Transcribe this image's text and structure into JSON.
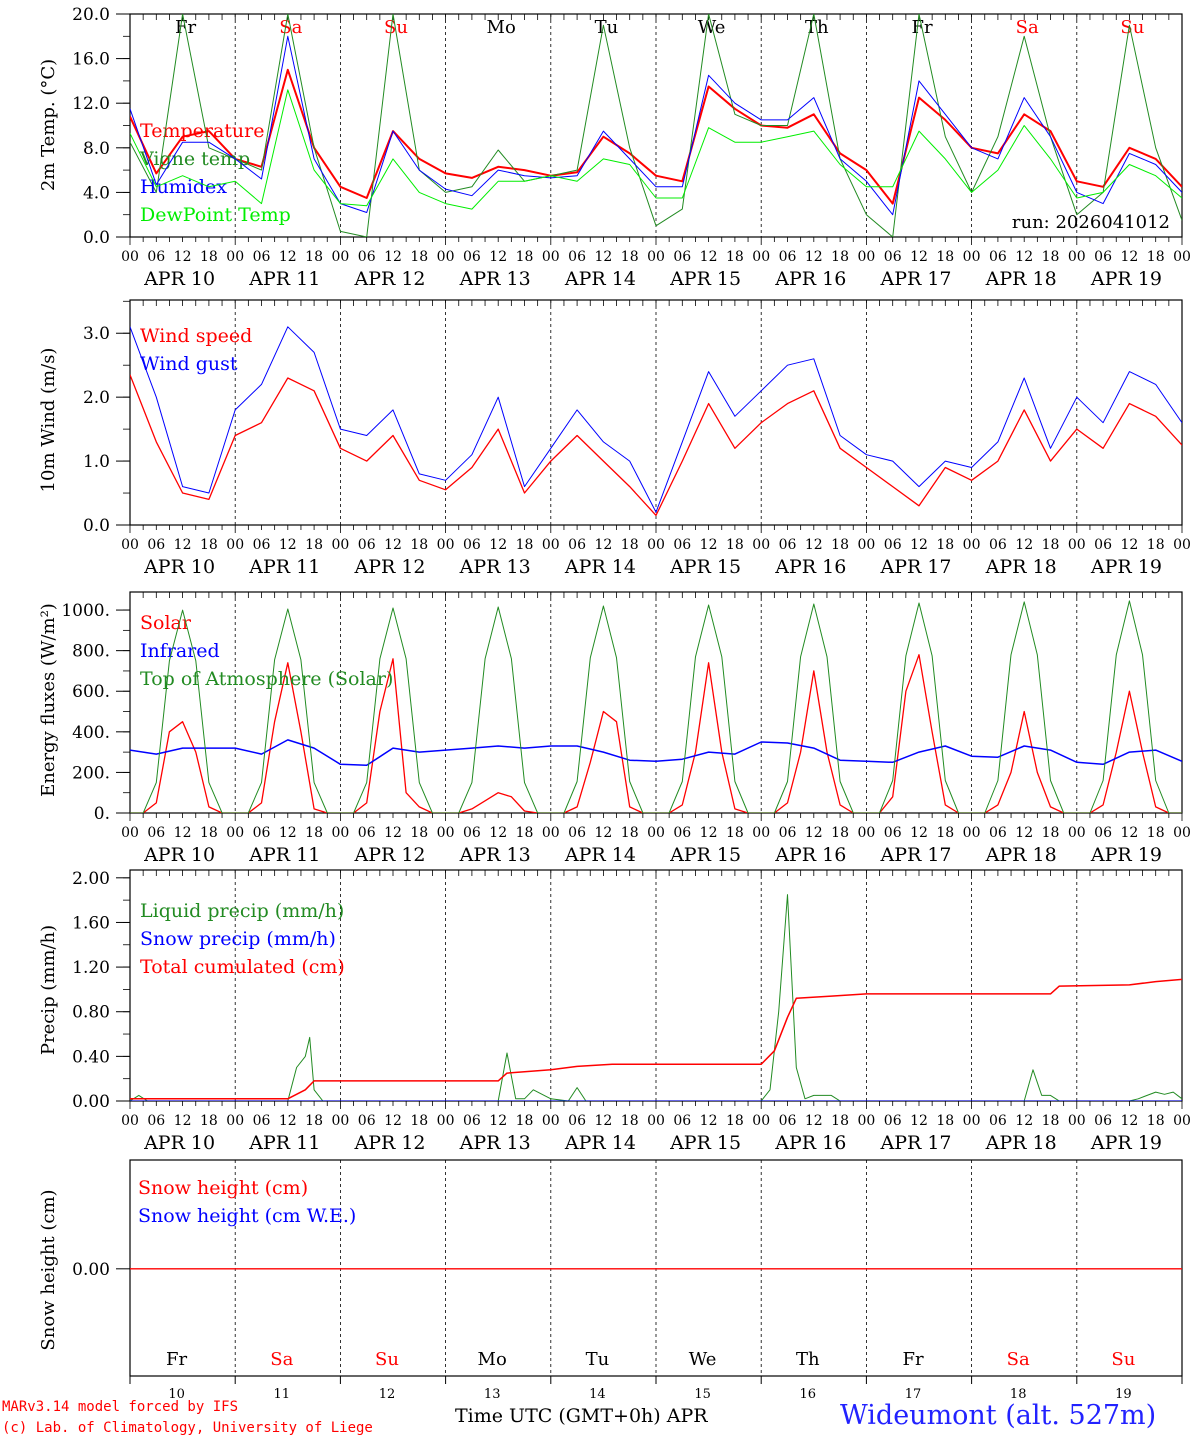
{
  "run_label": "run: 2026041012",
  "hour_labels": [
    "00",
    "06",
    "12",
    "18"
  ],
  "date_labels": [
    "APR 10",
    "APR 11",
    "APR 12",
    "APR 13",
    "APR 14",
    "APR 15",
    "APR 16",
    "APR 17",
    "APR 18",
    "APR 19"
  ],
  "day_names": [
    {
      "label": "Fr",
      "color": "#000000"
    },
    {
      "label": "Sa",
      "color": "#ff0000"
    },
    {
      "label": "Su",
      "color": "#ff0000"
    },
    {
      "label": "Mo",
      "color": "#000000"
    },
    {
      "label": "Tu",
      "color": "#000000"
    },
    {
      "label": "We",
      "color": "#000000"
    },
    {
      "label": "Th",
      "color": "#000000"
    },
    {
      "label": "Fr",
      "color": "#000000"
    },
    {
      "label": "Sa",
      "color": "#ff0000"
    },
    {
      "label": "Su",
      "color": "#ff0000"
    }
  ],
  "day_numbers": [
    "10",
    "11",
    "12",
    "13",
    "14",
    "15",
    "16",
    "17",
    "18",
    "19"
  ],
  "footer": {
    "model": "MARv3.14 model forced by IFS",
    "copyright": "(c) Lab. of Climatology, University of Liege",
    "xlabel": "Time UTC (GMT+0h) APR",
    "station": "Wideumont (alt. 527m)"
  },
  "chart_data": [
    {
      "type": "line",
      "ylabel": "2m Temp. (°C)",
      "ylim": [
        0,
        20
      ],
      "yticks": [
        "0.0",
        "4.0",
        "8.0",
        "12.0",
        "16.0",
        "20.0"
      ],
      "x_unit": "hours since APR 10 00 UTC",
      "series": [
        {
          "name": "Temperature",
          "color": "#ff0000",
          "width": 2,
          "step": 6,
          "values": [
            10.8,
            5.7,
            9.0,
            9.5,
            7.0,
            6.3,
            15.0,
            8.0,
            4.5,
            3.5,
            9.5,
            7.0,
            5.7,
            5.3,
            6.3,
            6.0,
            5.5,
            5.8,
            9.0,
            7.5,
            5.5,
            5.0,
            13.5,
            11.5,
            10.0,
            9.8,
            11.0,
            7.5,
            6.0,
            3.0,
            12.5,
            10.5,
            8.0,
            7.5,
            11.0,
            9.5,
            5.0,
            4.5,
            8.0,
            7.0,
            4.5
          ]
        },
        {
          "name": "Vigne temp",
          "color": "#228b22",
          "width": 1,
          "step": 6,
          "values": [
            8.5,
            4.0,
            20.0,
            8.0,
            7.0,
            6.0,
            20.0,
            8.0,
            0.5,
            0.0,
            20.0,
            6.0,
            4.0,
            4.5,
            7.8,
            5.0,
            5.5,
            6.0,
            19.0,
            8.0,
            1.0,
            2.5,
            20.0,
            11.0,
            10.0,
            10.0,
            20.0,
            7.0,
            2.0,
            0.0,
            20.0,
            9.0,
            4.0,
            9.0,
            18.0,
            9.0,
            2.0,
            4.0,
            19.0,
            8.0,
            1.5
          ]
        },
        {
          "name": "Humidex",
          "color": "#0000ff",
          "width": 1,
          "step": 6,
          "values": [
            11.5,
            4.7,
            8.5,
            8.5,
            7.0,
            5.2,
            18.0,
            7.0,
            3.0,
            2.2,
            9.5,
            6.0,
            4.3,
            3.7,
            6.0,
            5.5,
            5.3,
            5.5,
            9.5,
            7.0,
            4.5,
            4.5,
            14.5,
            12.0,
            10.5,
            10.5,
            12.5,
            7.0,
            5.0,
            2.0,
            14.0,
            11.0,
            8.0,
            7.0,
            12.5,
            9.0,
            4.0,
            3.0,
            7.5,
            6.5,
            4.0
          ]
        },
        {
          "name": "DewPoint Temp",
          "color": "#00ee00",
          "width": 1,
          "step": 6,
          "values": [
            9.3,
            4.5,
            5.5,
            4.5,
            5.0,
            3.0,
            13.2,
            6.0,
            3.0,
            2.8,
            7.0,
            4.0,
            3.0,
            2.5,
            5.0,
            5.0,
            5.5,
            5.0,
            7.0,
            6.5,
            3.5,
            3.5,
            9.8,
            8.5,
            8.5,
            9.0,
            9.5,
            6.5,
            4.5,
            4.5,
            9.5,
            7.0,
            4.0,
            6.0,
            10.0,
            7.0,
            3.5,
            4.0,
            6.5,
            5.5,
            3.5
          ]
        }
      ]
    },
    {
      "type": "line",
      "ylabel": "10m Wind (m/s)",
      "ylim": [
        0,
        3.52
      ],
      "yticks": [
        "0.0",
        "1.0",
        "2.0",
        "3.0"
      ],
      "series": [
        {
          "name": "Wind speed",
          "color": "#ff0000",
          "width": 1.3,
          "step": 6,
          "values": [
            2.35,
            1.3,
            0.5,
            0.4,
            1.4,
            1.6,
            2.3,
            2.1,
            1.2,
            1.0,
            1.4,
            0.7,
            0.55,
            0.9,
            1.5,
            0.5,
            1.0,
            1.4,
            1.0,
            0.6,
            0.15,
            1.0,
            1.9,
            1.2,
            1.6,
            1.9,
            2.1,
            1.2,
            0.9,
            0.6,
            0.3,
            0.9,
            0.7,
            1.0,
            1.8,
            1.0,
            1.5,
            1.2,
            1.9,
            1.7,
            1.25
          ]
        },
        {
          "name": "Wind gust",
          "color": "#0000ff",
          "width": 1,
          "step": 6,
          "values": [
            3.1,
            2.0,
            0.6,
            0.5,
            1.8,
            2.2,
            3.1,
            2.7,
            1.5,
            1.4,
            1.8,
            0.8,
            0.7,
            1.1,
            2.0,
            0.6,
            1.2,
            1.8,
            1.3,
            1.0,
            0.2,
            1.3,
            2.4,
            1.7,
            2.1,
            2.5,
            2.6,
            1.4,
            1.1,
            1.0,
            0.6,
            1.0,
            0.9,
            1.3,
            2.3,
            1.2,
            2.0,
            1.6,
            2.4,
            2.2,
            1.6
          ]
        }
      ]
    },
    {
      "type": "line",
      "ylabel": "Energy fluxes (W/m²)",
      "ylim": [
        0,
        1089
      ],
      "yticks": [
        "0.",
        "200.",
        "400.",
        "600.",
        "800.",
        "1000."
      ],
      "series": [
        {
          "name": "Solar",
          "color": "#ff0000",
          "width": 1.3,
          "step": 3,
          "values": [
            0,
            0,
            50,
            400,
            450,
            300,
            30,
            0,
            0,
            0,
            50,
            450,
            740,
            400,
            20,
            0,
            0,
            0,
            50,
            500,
            760,
            100,
            30,
            0,
            0,
            0,
            20,
            60,
            100,
            80,
            10,
            0,
            0,
            0,
            30,
            250,
            500,
            450,
            30,
            0,
            0,
            0,
            40,
            300,
            740,
            300,
            20,
            0,
            0,
            0,
            50,
            300,
            700,
            300,
            40,
            0,
            0,
            0,
            80,
            600,
            780,
            400,
            40,
            0,
            0,
            0,
            40,
            200,
            500,
            200,
            30,
            0,
            0,
            0,
            40,
            300,
            600,
            300,
            30,
            0,
            0
          ]
        },
        {
          "name": "Infrared",
          "color": "#0000ff",
          "width": 1.5,
          "step": 6,
          "values": [
            310,
            290,
            320,
            320,
            320,
            290,
            360,
            320,
            240,
            235,
            320,
            300,
            310,
            320,
            330,
            320,
            330,
            330,
            300,
            260,
            255,
            265,
            300,
            290,
            350,
            345,
            320,
            260,
            255,
            250,
            300,
            330,
            280,
            275,
            330,
            310,
            250,
            240,
            300,
            310,
            255
          ]
        },
        {
          "name": "Top of Atmosphere (Solar)",
          "color": "#228b22",
          "width": 1,
          "step": 3,
          "values": [
            0,
            0,
            150,
            750,
            1000,
            750,
            150,
            0,
            0,
            0,
            150,
            755,
            1005,
            755,
            150,
            0,
            0,
            0,
            150,
            760,
            1010,
            760,
            150,
            0,
            0,
            0,
            150,
            760,
            1015,
            760,
            150,
            0,
            0,
            0,
            155,
            765,
            1020,
            765,
            155,
            0,
            0,
            0,
            155,
            770,
            1025,
            770,
            155,
            0,
            0,
            0,
            155,
            770,
            1030,
            770,
            155,
            0,
            0,
            0,
            160,
            775,
            1035,
            775,
            160,
            0,
            0,
            0,
            160,
            780,
            1040,
            780,
            160,
            0,
            0,
            0,
            160,
            780,
            1045,
            780,
            160,
            0,
            0
          ]
        }
      ]
    },
    {
      "type": "line",
      "ylabel": "Precip (mm/h)",
      "ylim": [
        0,
        2.07
      ],
      "yticks": [
        "0.00",
        "0.40",
        "0.80",
        "1.20",
        "1.60",
        "2.00"
      ],
      "series": [
        {
          "name": "Liquid precip (mm/h)",
          "color": "#228b22",
          "width": 1,
          "points": [
            [
              0,
              0
            ],
            [
              2,
              0.05
            ],
            [
              4,
              0
            ],
            [
              36,
              0
            ],
            [
              38,
              0.3
            ],
            [
              40,
              0.4
            ],
            [
              41,
              0.57
            ],
            [
              42,
              0.1
            ],
            [
              44,
              0
            ],
            [
              84,
              0
            ],
            [
              86,
              0.43
            ],
            [
              88,
              0.02
            ],
            [
              90,
              0.02
            ],
            [
              92,
              0.1
            ],
            [
              96,
              0.02
            ],
            [
              100,
              0
            ],
            [
              102,
              0.12
            ],
            [
              104,
              0
            ],
            [
              144,
              0
            ],
            [
              146,
              0.1
            ],
            [
              148,
              0.8
            ],
            [
              150,
              1.85
            ],
            [
              152,
              0.3
            ],
            [
              154,
              0.02
            ],
            [
              156,
              0.05
            ],
            [
              160,
              0.05
            ],
            [
              162,
              0
            ],
            [
              204,
              0
            ],
            [
              206,
              0.28
            ],
            [
              208,
              0.05
            ],
            [
              210,
              0.05
            ],
            [
              212,
              0
            ],
            [
              228,
              0
            ],
            [
              230,
              0.02
            ],
            [
              234,
              0.08
            ],
            [
              236,
              0.06
            ],
            [
              238,
              0.08
            ],
            [
              240,
              0.02
            ]
          ]
        },
        {
          "name": "Snow precip (mm/h)",
          "color": "#0000ff",
          "width": 1,
          "points": [
            [
              0,
              0
            ],
            [
              240,
              0
            ]
          ]
        },
        {
          "name": "Total cumulated (cm)",
          "color": "#ff0000",
          "width": 1.5,
          "points": [
            [
              0,
              0.02
            ],
            [
              36,
              0.02
            ],
            [
              40,
              0.1
            ],
            [
              42,
              0.18
            ],
            [
              84,
              0.18
            ],
            [
              86,
              0.25
            ],
            [
              96,
              0.28
            ],
            [
              102,
              0.31
            ],
            [
              110,
              0.33
            ],
            [
              144,
              0.33
            ],
            [
              147,
              0.45
            ],
            [
              150,
              0.75
            ],
            [
              152,
              0.92
            ],
            [
              160,
              0.94
            ],
            [
              168,
              0.96
            ],
            [
              210,
              0.96
            ],
            [
              212,
              1.03
            ],
            [
              228,
              1.04
            ],
            [
              234,
              1.07
            ],
            [
              240,
              1.09
            ]
          ]
        }
      ]
    },
    {
      "type": "line",
      "ylabel": "Snow height (cm)",
      "ylim": [
        -0.985,
        1
      ],
      "yticks": [
        "0.00"
      ],
      "series": [
        {
          "name": "Snow height (cm)",
          "color": "#ff0000",
          "width": 1.3,
          "points": [
            [
              0,
              0
            ],
            [
              240,
              0
            ]
          ]
        },
        {
          "name": "Snow height (cm W.E.)",
          "color": "#0000ff",
          "width": 1,
          "points": []
        }
      ]
    }
  ]
}
